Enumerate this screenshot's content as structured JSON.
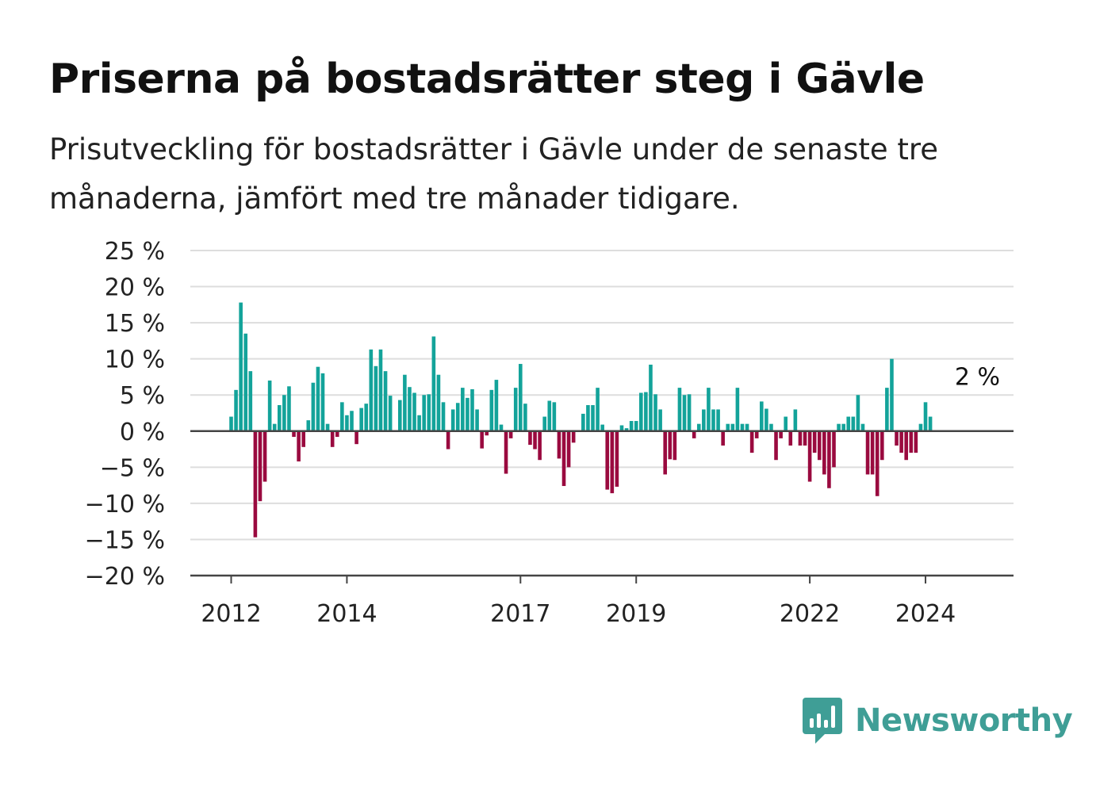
{
  "header": {
    "title": "Priserna på bostadsrätter steg i Gävle",
    "subtitle": "Prisutveckling för bostadsrätter i Gävle under de senaste tre månaderna, jämfört med tre månader tidigare."
  },
  "brand": {
    "name": "Newsworthy",
    "color": "#3f9e96",
    "icon": "newsworthy-chart-bubble-icon"
  },
  "colors": {
    "positive": "#13a39a",
    "negative": "#9a0a3f",
    "grid": "#dddddd",
    "axis": "#444444"
  },
  "chart_data": {
    "type": "bar",
    "title": "Priserna på bostadsrätter steg i Gävle",
    "xlabel": "",
    "ylabel": "",
    "ylim": [
      -20,
      25
    ],
    "yticks": [
      25,
      20,
      15,
      10,
      5,
      0,
      -5,
      -10,
      -15,
      -20
    ],
    "ytick_labels": [
      "25 %",
      "20 %",
      "15 %",
      "10 %",
      "5 %",
      "0 %",
      "−5 %",
      "−10 %",
      "−15 %",
      "−20 %"
    ],
    "xticks": [
      "2012",
      "2014",
      "2017",
      "2019",
      "2022",
      "2024"
    ],
    "grid": true,
    "start": "2012-01",
    "series": [
      {
        "values": [
          2,
          5.7,
          17.8,
          13.5,
          8.3,
          -14.7,
          -9.7,
          -7,
          7,
          1,
          3.6,
          5,
          6.2,
          -0.8,
          -4.2,
          -2.2,
          1.5,
          6.7,
          8.9,
          8,
          1,
          -2.2,
          -0.8,
          4,
          2.2,
          2.8,
          -1.8,
          3.2,
          3.8,
          11.3,
          9,
          11.3,
          8.3,
          4.9,
          null,
          4.3,
          7.8,
          6.1,
          5.3,
          2.2,
          5,
          5.1,
          13.1,
          7.8,
          4,
          -2.5,
          3,
          3.9,
          6,
          4.6,
          5.8,
          3,
          -2.4,
          -0.6,
          5.7,
          7.1,
          0.9,
          -5.9,
          -1,
          6,
          9.3,
          3.8,
          -1.9,
          -2.5,
          -4,
          2,
          4.2,
          4,
          -3.8,
          -7.6,
          -5,
          -1.6,
          null,
          2.4,
          3.6,
          3.6,
          6,
          0.9,
          -8.1,
          -8.6,
          -7.7,
          0.8,
          0.4,
          1.4,
          1.4,
          5.3,
          5.4,
          9.2,
          5.1,
          3,
          -6,
          -3.9,
          -4,
          6,
          5,
          5.1,
          -1,
          1,
          3,
          6,
          3,
          3,
          -2,
          1,
          1,
          6,
          1,
          1,
          -3,
          -1,
          4.1,
          3.1,
          1,
          -4,
          -1,
          2,
          -2,
          3,
          -2,
          -2,
          -7,
          -3,
          -4,
          -6,
          -7.9,
          -5,
          1,
          1,
          2,
          2,
          5,
          1,
          -6,
          -6,
          -9,
          -4,
          6,
          10,
          -2,
          -3,
          -4,
          -3,
          -3,
          1,
          4,
          2
        ]
      }
    ],
    "annotation": {
      "label": "2 %",
      "value": 2,
      "period": "2024-12"
    }
  }
}
